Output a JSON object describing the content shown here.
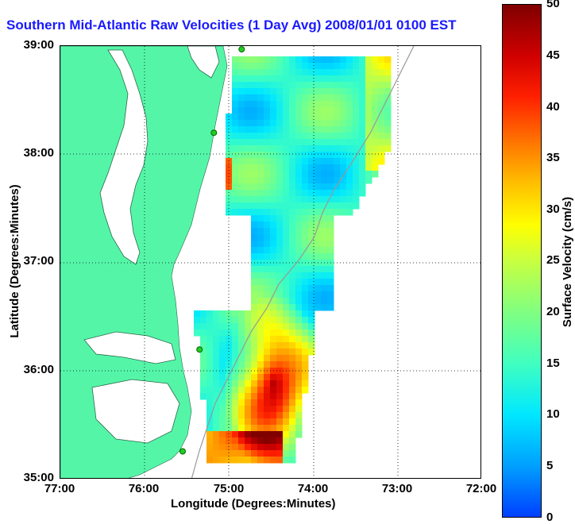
{
  "title": "Southern Mid-Atlantic Raw Velocities (1 Day Avg) 2008/01/01 0100 EST",
  "x_axis": {
    "label": "Longitude (Degrees:Minutes)",
    "ticks": [
      "77:00",
      "76:00",
      "75:00",
      "74:00",
      "73:00",
      "72:00"
    ]
  },
  "y_axis": {
    "label": "Latitude (Degrees:Minutes)",
    "ticks": [
      "39:00",
      "38:00",
      "37:00",
      "36:00",
      "35:00"
    ]
  },
  "colorbar": {
    "label": "Surface Velocity (cm/s)",
    "ticks": [
      "50",
      "45",
      "40",
      "35",
      "30",
      "25",
      "20",
      "15",
      "10",
      "5",
      "0"
    ],
    "min": 0,
    "max": 50
  },
  "colors": {
    "land": "#55f5a8",
    "title": "#1a1aff",
    "arrow": "#000000"
  },
  "map": {
    "lon_range": [
      -77,
      -72
    ],
    "lat_range": [
      35,
      39
    ],
    "stations": [
      {
        "lon": -74.85,
        "lat": 38.97
      },
      {
        "lon": -75.18,
        "lat": 38.2
      },
      {
        "lon": -75.35,
        "lat": 36.2
      },
      {
        "lon": -75.55,
        "lat": 35.26
      }
    ]
  }
}
